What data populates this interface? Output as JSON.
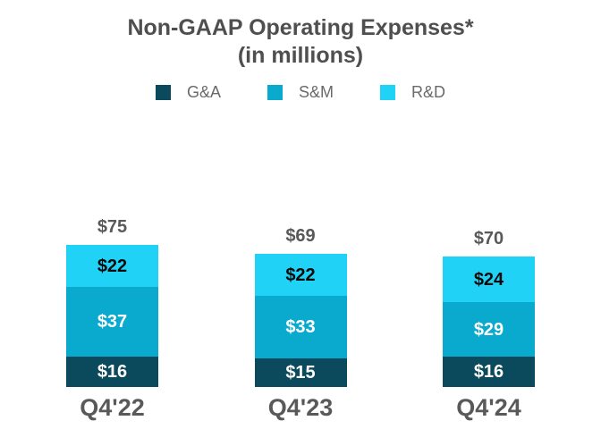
{
  "title": {
    "line1": "Non-GAAP Operating Expenses*",
    "line2": "(in millions)"
  },
  "chart_data": {
    "type": "bar",
    "stacked": true,
    "title": "Non-GAAP Operating Expenses* (in millions)",
    "categories": [
      "Q4'22",
      "Q4'23",
      "Q4'24"
    ],
    "series": [
      {
        "name": "G&A",
        "color": "#0b4a5c",
        "label_color": "#ffffff",
        "values": [
          16,
          15,
          16
        ],
        "value_labels": [
          "$16",
          "$15",
          "$16"
        ]
      },
      {
        "name": "S&M",
        "color": "#0aa9ce",
        "label_color": "#ffffff",
        "values": [
          37,
          33,
          29
        ],
        "value_labels": [
          "$37",
          "$33",
          "$29"
        ]
      },
      {
        "name": "R&D",
        "color": "#21d2f7",
        "label_color": "#0a0a0a",
        "values": [
          22,
          22,
          24
        ],
        "value_labels": [
          "$22",
          "$22",
          "$24"
        ]
      }
    ],
    "totals": [
      75,
      69,
      70
    ],
    "total_labels": [
      "$75",
      "$69",
      "$70"
    ],
    "legend_position": "top",
    "legend_entries": [
      "G&A",
      "S&M",
      "R&D"
    ],
    "grid": false,
    "axes_visible": false,
    "colors": {
      "title_text": "#4f4f4f",
      "gray_labels": "#595959",
      "legend_text": "#6a6a6a",
      "background": "#ffffff"
    }
  }
}
